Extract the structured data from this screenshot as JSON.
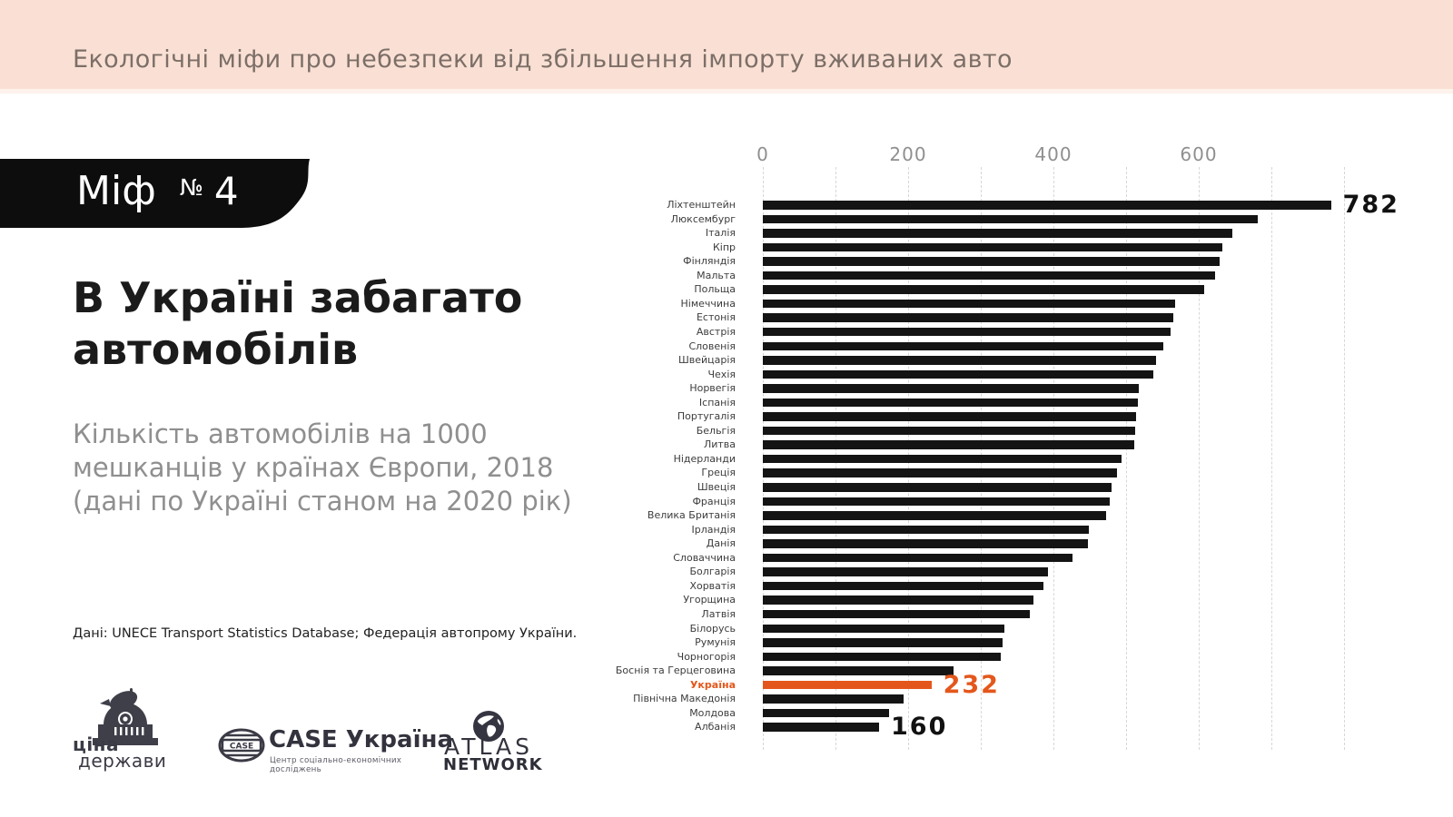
{
  "banner": {
    "title": "Екологічні міфи про небезпеки від збільшення імпорту вживаних авто"
  },
  "myth_badge": {
    "label": "Міф",
    "number_sign": "№",
    "number": "4"
  },
  "headline": {
    "line1": "В Україні забагато",
    "line2": "автомобілів"
  },
  "subtitle": {
    "line1": "Кількість автомобілів на 1000",
    "line2": "мешканців у країнах Європи, 2018",
    "line3": "(дані по Україні станом на 2020 рік)"
  },
  "source": "Дані: UNECE Transport Statistics Database; Федерація автопрому України.",
  "logos": {
    "cina_derzhavy": {
      "line1": "ціна",
      "line2": "держави"
    },
    "case": {
      "badge": "CASE",
      "title": "CASE Україна",
      "subtitle": "Центр соціально-економічних досліджень"
    },
    "atlas": {
      "line1": "ATLAS",
      "line2": "NETWORK"
    }
  },
  "colors": {
    "banner_bg": "#fae0d4",
    "banner_text": "#7c6f68",
    "badge_bg": "#0d0d0d",
    "bar": "#141414",
    "highlight": "#e4571c",
    "axis_text": "#8f8f8f",
    "gridline": "#d7d7d7",
    "country_label": "#3c3c3c"
  },
  "chart_data": {
    "type": "bar",
    "orientation": "horizontal",
    "title": "",
    "xlabel": "",
    "ylabel": "",
    "xlim": [
      0,
      800
    ],
    "x_ticks": [
      0,
      200,
      400,
      600
    ],
    "gridline_step": 100,
    "grid": true,
    "categories": [
      "Ліхтенштейн",
      "Люксембург",
      "Італія",
      "Кіпр",
      "Фінляндія",
      "Мальта",
      "Польща",
      "Німеччина",
      "Естонія",
      "Австрія",
      "Словенія",
      "Швейцарія",
      "Чехія",
      "Норвегія",
      "Іспанія",
      "Португалія",
      "Бельгія",
      "Литва",
      "Нідерланди",
      "Греція",
      "Швеція",
      "Франція",
      "Велика Британія",
      "Ірландія",
      "Данія",
      "Словаччина",
      "Болгарія",
      "Хорватія",
      "Угорщина",
      "Латвія",
      "Білорусь",
      "Румунія",
      "Чорногорія",
      "Боснія та Герцеговина",
      "Україна",
      "Північна Македонія",
      "Молдова",
      "Албанія"
    ],
    "values": [
      782,
      681,
      646,
      632,
      629,
      623,
      608,
      567,
      565,
      561,
      551,
      541,
      538,
      518,
      516,
      514,
      513,
      511,
      494,
      487,
      480,
      478,
      473,
      449,
      448,
      426,
      393,
      386,
      373,
      367,
      333,
      330,
      328,
      263,
      232,
      194,
      174,
      160
    ],
    "highlight_index": 34,
    "labeled_indices": [
      0,
      34,
      37
    ]
  }
}
